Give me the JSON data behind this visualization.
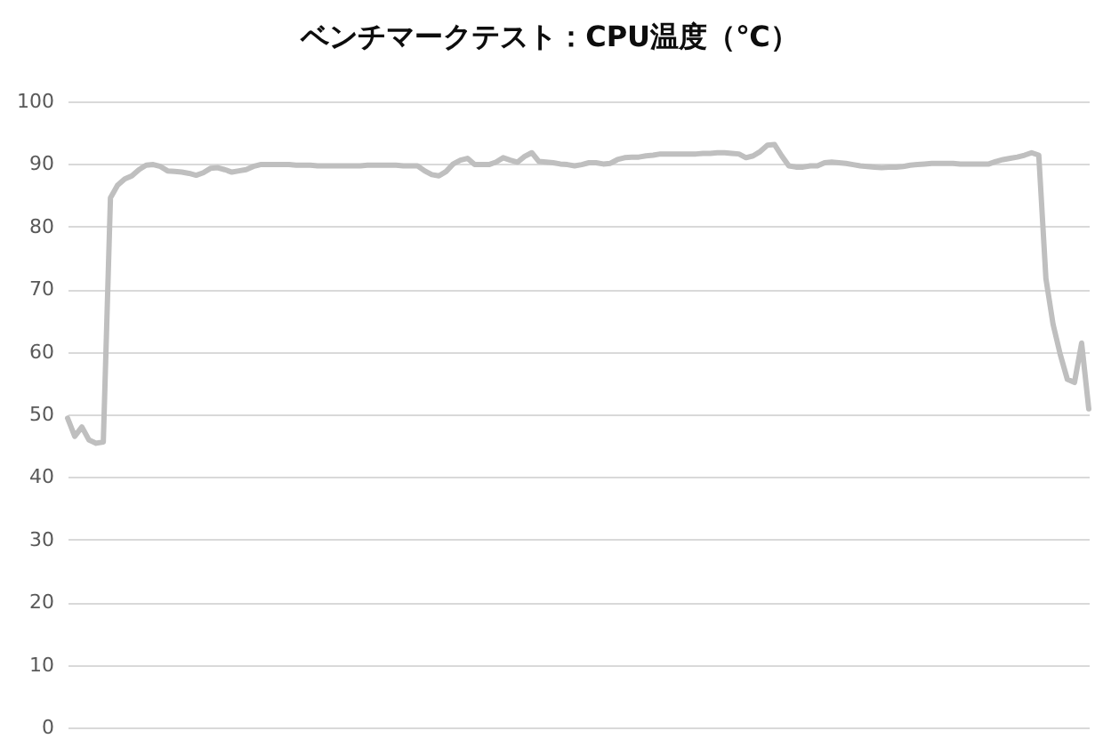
{
  "chart_data": {
    "type": "line",
    "title": "ベンチマークテスト：CPU温度（℃）",
    "categories": [
      null,
      null,
      null,
      null,
      null,
      null,
      null,
      null,
      null,
      null,
      null,
      null,
      null,
      null,
      null,
      null,
      null,
      null,
      null,
      null,
      null,
      null,
      null,
      null,
      null,
      null,
      null,
      null,
      null,
      null,
      null,
      null,
      null,
      null,
      null,
      null,
      null,
      null,
      null,
      null,
      null,
      null,
      null,
      null,
      null,
      null,
      null,
      null,
      null,
      null,
      null,
      null,
      null,
      null,
      null,
      null,
      null,
      null,
      null,
      null,
      null,
      null,
      null,
      null,
      null,
      null,
      null,
      null,
      null,
      null,
      null,
      null,
      null,
      null,
      null,
      null,
      null,
      null,
      null,
      null,
      null,
      null,
      null,
      null,
      null,
      null,
      null,
      null,
      null,
      null,
      null,
      null,
      null,
      null,
      null,
      null,
      null,
      null,
      null,
      null,
      null,
      null,
      null,
      null,
      null,
      null,
      null,
      null,
      null,
      null,
      null,
      null,
      null,
      null,
      null,
      null,
      null,
      null,
      null,
      null,
      null,
      null,
      null,
      null,
      null,
      null,
      null,
      null,
      null,
      null,
      null,
      null,
      null,
      null,
      null,
      null,
      null,
      null,
      null,
      null,
      null,
      null,
      null,
      null
    ],
    "series": [
      {
        "color": "#bfbfbf",
        "values": [
          49.4,
          46.5,
          48,
          45.9,
          45.4,
          45.6,
          84.6,
          86.6,
          87.6,
          88.1,
          89.1,
          89.8,
          89.9,
          89.6,
          88.9,
          88.8,
          88.7,
          88.5,
          88.2,
          88.6,
          89.3,
          89.4,
          89.1,
          88.7,
          88.9,
          89.1,
          89.6,
          89.9,
          89.9,
          89.9,
          89.9,
          89.9,
          89.8,
          89.8,
          89.8,
          89.7,
          89.7,
          89.7,
          89.7,
          89.7,
          89.7,
          89.7,
          89.8,
          89.8,
          89.8,
          89.8,
          89.8,
          89.7,
          89.7,
          89.7,
          88.9,
          88.3,
          88.1,
          88.8,
          90.0,
          90.6,
          90.9,
          89.9,
          89.9,
          89.9,
          90.3,
          91.0,
          90.6,
          90.3,
          91.2,
          91.8,
          90.4,
          90.3,
          90.2,
          90.0,
          89.9,
          89.7,
          89.9,
          90.2,
          90.2,
          90.0,
          90.1,
          90.7,
          91.0,
          91.1,
          91.1,
          91.3,
          91.4,
          91.6,
          91.6,
          91.6,
          91.6,
          91.6,
          91.6,
          91.7,
          91.7,
          91.8,
          91.8,
          91.7,
          91.6,
          91.0,
          91.3,
          92.0,
          93.0,
          93.1,
          91.3,
          89.7,
          89.5,
          89.5,
          89.7,
          89.7,
          90.2,
          90.3,
          90.2,
          90.1,
          89.9,
          89.7,
          89.6,
          89.5,
          89.4,
          89.5,
          89.5,
          89.6,
          89.8,
          89.9,
          90.0,
          90.1,
          90.1,
          90.1,
          90.1,
          90.0,
          90.0,
          90.0,
          90.0,
          90.0,
          90.4,
          90.7,
          90.9,
          91.1,
          91.4,
          91.8,
          91.4,
          71.7,
          64.4,
          59.6,
          55.6,
          55.1,
          61.4,
          50.9
        ]
      }
    ],
    "ylim": [
      0,
      100
    ],
    "yticks": [
      0,
      10,
      20,
      30,
      40,
      50,
      60,
      70,
      80,
      90,
      100
    ],
    "grid": "y",
    "tick_labels": "y"
  }
}
